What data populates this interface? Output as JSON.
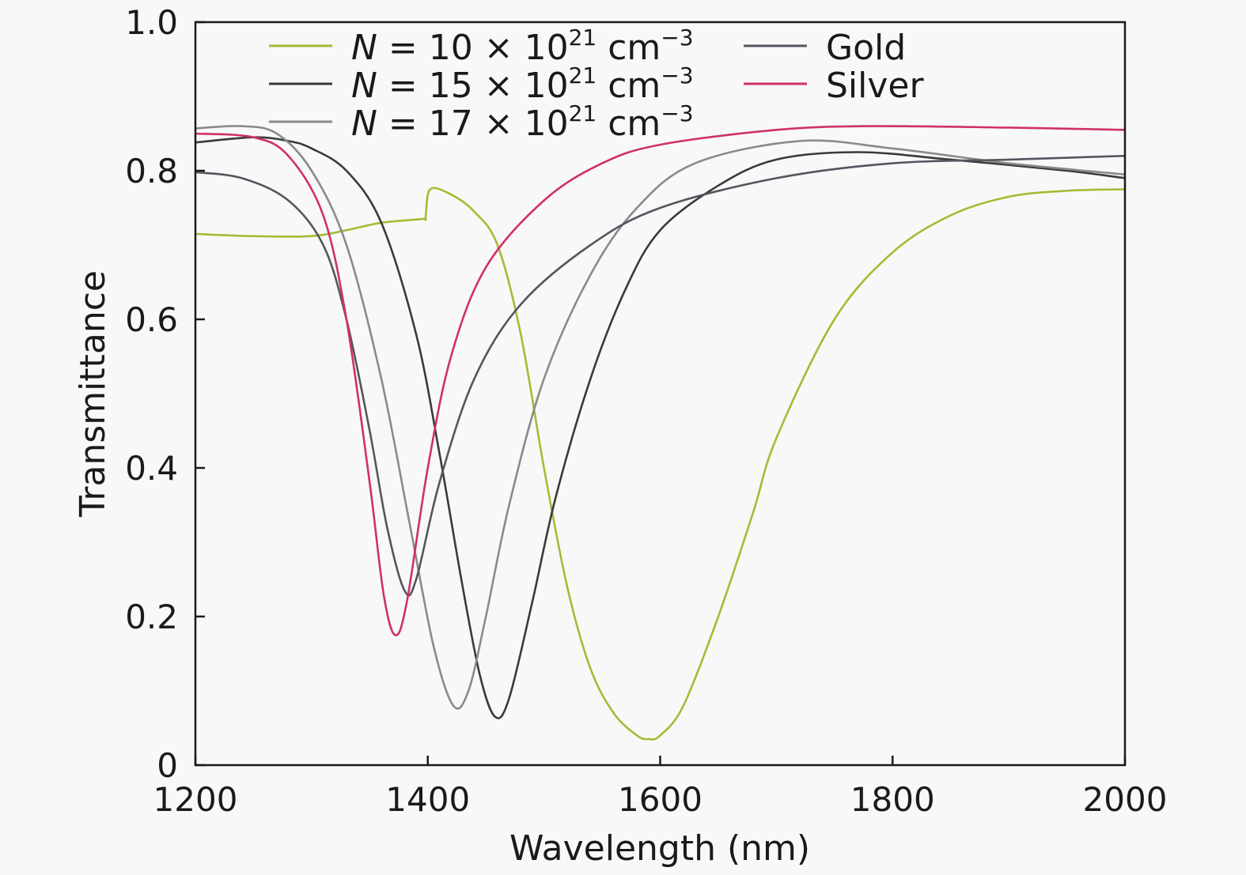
{
  "chart_data": {
    "type": "line",
    "title": "",
    "xlabel": "Wavelength (nm)",
    "ylabel": "Transmittance",
    "xlim": [
      1200,
      2000
    ],
    "ylim": [
      0,
      1.0
    ],
    "xticks": [
      1200,
      1400,
      1600,
      1800,
      2000
    ],
    "xtick_labels": [
      "1200",
      "1400",
      "1600",
      "1800",
      "2000"
    ],
    "yticks": [
      0,
      0.2,
      0.4,
      0.6,
      0.8,
      1.0
    ],
    "ytick_labels": [
      "0",
      "0.2",
      "0.4",
      "0.6",
      "0.8",
      "1.0"
    ],
    "grid": false,
    "legend_placement": "top",
    "series": [
      {
        "name": "N = 10 × 10^21 cm^-3",
        "legend": {
          "var": "N",
          "text": " = 10 × 10",
          "sup1": "21",
          "unit": " cm",
          "sup2": "−3"
        },
        "color": "#a9b935",
        "x": [
          1200,
          1250,
          1300,
          1330,
          1360,
          1395,
          1398,
          1402,
          1420,
          1440,
          1460,
          1480,
          1500,
          1520,
          1540,
          1560,
          1580,
          1590,
          1600,
          1620,
          1650,
          1680,
          1700,
          1750,
          1800,
          1850,
          1900,
          1950,
          2000
        ],
        "y": [
          0.715,
          0.712,
          0.712,
          0.72,
          0.73,
          0.735,
          0.737,
          0.775,
          0.768,
          0.745,
          0.7,
          0.58,
          0.4,
          0.24,
          0.13,
          0.07,
          0.04,
          0.035,
          0.04,
          0.08,
          0.2,
          0.34,
          0.44,
          0.6,
          0.69,
          0.74,
          0.765,
          0.773,
          0.775
        ]
      },
      {
        "name": "N = 15 × 10^21 cm^-3",
        "legend": {
          "var": "N",
          "text": " = 15 × 10",
          "sup1": "21",
          "unit": " cm",
          "sup2": "−3"
        },
        "color": "#3a3a3a",
        "x": [
          1200,
          1250,
          1280,
          1300,
          1330,
          1360,
          1390,
          1410,
          1430,
          1445,
          1458,
          1470,
          1490,
          1510,
          1540,
          1570,
          1600,
          1650,
          1700,
          1770,
          1850,
          1950,
          2000
        ],
        "y": [
          0.838,
          0.845,
          0.84,
          0.83,
          0.8,
          0.73,
          0.58,
          0.42,
          0.24,
          0.12,
          0.065,
          0.09,
          0.22,
          0.36,
          0.52,
          0.64,
          0.72,
          0.78,
          0.815,
          0.825,
          0.815,
          0.8,
          0.79
        ]
      },
      {
        "name": "N = 17 × 10^21 cm^-3",
        "legend": {
          "var": "N",
          "text": " = 17 × 10",
          "sup1": "21",
          "unit": " cm",
          "sup2": "−3"
        },
        "color": "#8a8a8a",
        "x": [
          1200,
          1240,
          1270,
          1300,
          1330,
          1360,
          1385,
          1405,
          1422,
          1435,
          1450,
          1470,
          1500,
          1540,
          1580,
          1630,
          1720,
          1800,
          1900,
          2000
        ],
        "y": [
          0.857,
          0.86,
          0.85,
          0.8,
          0.7,
          0.52,
          0.32,
          0.16,
          0.08,
          0.1,
          0.2,
          0.35,
          0.52,
          0.66,
          0.75,
          0.81,
          0.84,
          0.83,
          0.81,
          0.795
        ]
      },
      {
        "name": "Gold",
        "legend": {
          "text": "Gold"
        },
        "color": "#555560",
        "x": [
          1200,
          1240,
          1280,
          1310,
          1330,
          1350,
          1365,
          1380,
          1390,
          1410,
          1440,
          1480,
          1540,
          1600,
          1700,
          1800,
          1900,
          2000
        ],
        "y": [
          0.798,
          0.79,
          0.76,
          0.7,
          0.6,
          0.45,
          0.32,
          0.235,
          0.25,
          0.38,
          0.52,
          0.62,
          0.7,
          0.75,
          0.79,
          0.81,
          0.815,
          0.82
        ]
      },
      {
        "name": "Silver",
        "legend": {
          "text": "Silver"
        },
        "color": "#d0306a",
        "x": [
          1200,
          1250,
          1280,
          1310,
          1330,
          1350,
          1362,
          1372,
          1382,
          1400,
          1420,
          1450,
          1500,
          1550,
          1600,
          1700,
          1780,
          1900,
          2000
        ],
        "y": [
          0.85,
          0.845,
          0.82,
          0.74,
          0.6,
          0.38,
          0.23,
          0.175,
          0.22,
          0.4,
          0.55,
          0.67,
          0.76,
          0.81,
          0.835,
          0.855,
          0.86,
          0.858,
          0.855
        ]
      }
    ]
  }
}
